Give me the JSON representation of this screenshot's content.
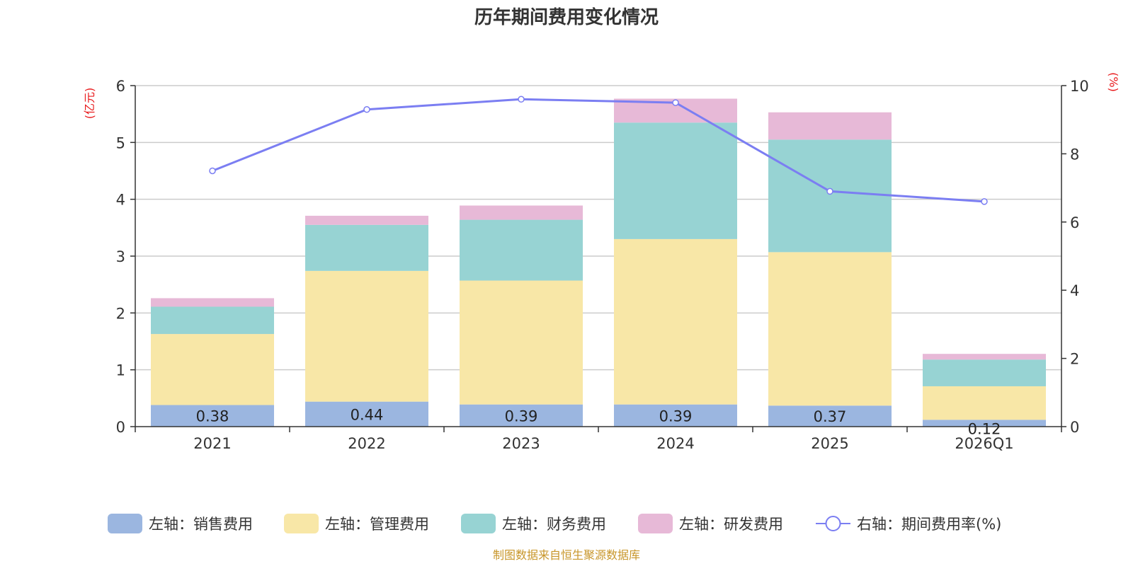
{
  "colors": {
    "sales": "#9bb6e0",
    "admin": "#f8e7a7",
    "finance": "#97d3d3",
    "rnd": "#e7b9d7",
    "rate": "#7b7ef2",
    "axis_unit": "#e8191b",
    "source": "#c8962a"
  },
  "chart_data": {
    "type": "bar",
    "title": "历年期间费用变化情况",
    "categories": [
      "2021",
      "2022",
      "2023",
      "2024",
      "2025",
      "2026Q1"
    ],
    "left_axis": {
      "unit": "(亿元)",
      "ylim": [
        0,
        6
      ],
      "ticks": [
        "0",
        "1",
        "2",
        "3",
        "4",
        "5",
        "6"
      ]
    },
    "right_axis": {
      "unit": "(%)",
      "ylim": [
        0,
        10
      ],
      "ticks": [
        "0",
        "2",
        "4",
        "6",
        "8",
        "10"
      ]
    },
    "series": [
      {
        "key": "sales",
        "name": "左轴：销售费用",
        "stacked": true,
        "axis": "left",
        "values": [
          0.38,
          0.44,
          0.39,
          0.39,
          0.37,
          0.12
        ],
        "labels": [
          "0.38",
          "0.44",
          "0.39",
          "0.39",
          "0.37",
          "0.12"
        ]
      },
      {
        "key": "admin",
        "name": "左轴：管理费用",
        "stacked": true,
        "axis": "left",
        "values": [
          1.25,
          2.3,
          2.18,
          2.91,
          2.7,
          0.59
        ]
      },
      {
        "key": "finance",
        "name": "左轴：财务费用",
        "stacked": true,
        "axis": "left",
        "values": [
          0.48,
          0.81,
          1.07,
          2.05,
          1.98,
          0.47
        ]
      },
      {
        "key": "rnd",
        "name": "左轴：研发费用",
        "stacked": true,
        "axis": "left",
        "values": [
          0.15,
          0.16,
          0.25,
          0.42,
          0.48,
          0.1
        ]
      },
      {
        "key": "rate",
        "name": "右轴：期间费用率(%)",
        "type": "line",
        "axis": "right",
        "values": [
          7.5,
          9.3,
          9.6,
          9.5,
          6.9,
          6.6
        ]
      }
    ],
    "grid": true,
    "legend_position": "bottom",
    "source": "制图数据来自恒生聚源数据库"
  }
}
